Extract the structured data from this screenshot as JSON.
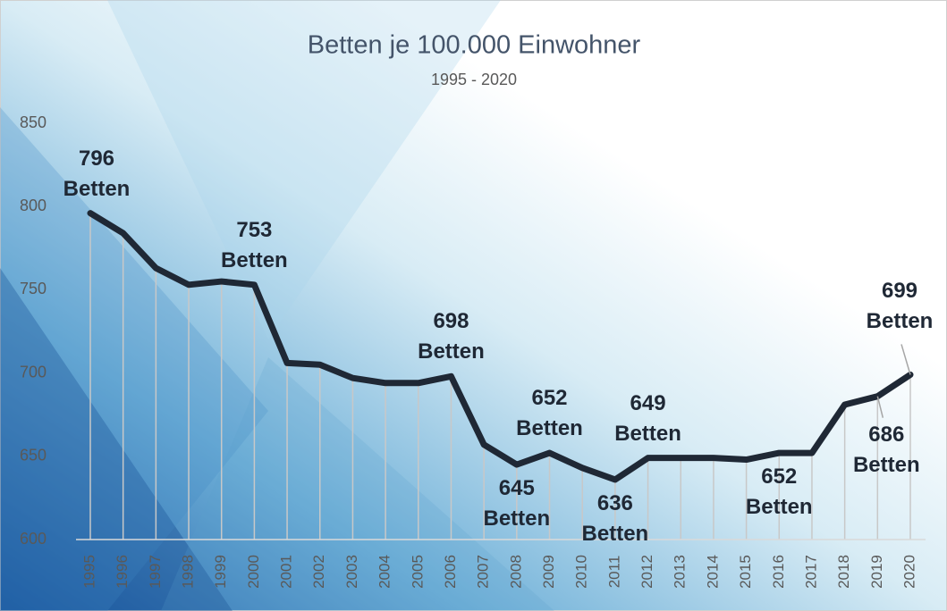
{
  "chart_data": {
    "type": "line",
    "title": "Betten je 100.000 Einwohner",
    "subtitle": "1995 - 2020",
    "categories": [
      "1995",
      "1996",
      "1997",
      "1998",
      "1999",
      "2000",
      "2001",
      "2002",
      "2003",
      "2004",
      "2005",
      "2006",
      "2007",
      "2008",
      "2009",
      "2010",
      "2011",
      "2012",
      "2013",
      "2014",
      "2015",
      "2016",
      "2017",
      "2018",
      "2019",
      "2020"
    ],
    "series": [
      {
        "name": "Betten",
        "color": "#1f2835",
        "values": [
          796,
          784,
          763,
          753,
          755,
          753,
          706,
          705,
          697,
          694,
          694,
          698,
          657,
          645,
          652,
          643,
          636,
          649,
          649,
          649,
          648,
          652,
          652,
          681,
          686,
          699
        ],
        "value_labels": [
          "796 Betten",
          null,
          null,
          null,
          null,
          "753 Betten",
          null,
          null,
          null,
          null,
          null,
          "698 Betten",
          null,
          "645 Betten",
          "652 Betten",
          null,
          "636 Betten",
          "649 Betten",
          null,
          null,
          null,
          "652 Betten",
          null,
          null,
          "686 Betten",
          "699 Betten"
        ]
      }
    ],
    "ylim": [
      600,
      850
    ],
    "yticks": [
      600,
      650,
      700,
      750,
      800,
      850
    ],
    "drop_lines": true
  }
}
